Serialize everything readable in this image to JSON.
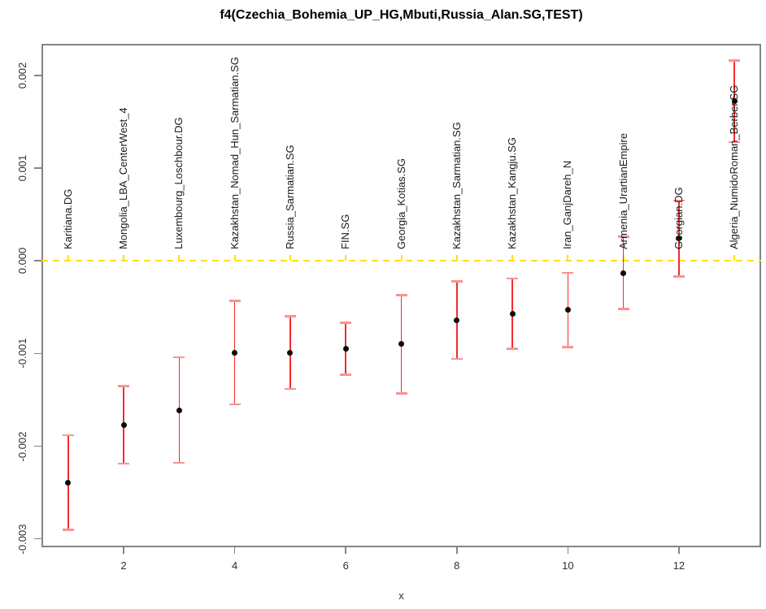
{
  "title": "f4(Czechia_Bohemia_UP_HG,Mbuti,Russia_Alan.SG,TEST)",
  "chart_data": {
    "type": "scatter",
    "title": "f4(Czechia_Bohemia_UP_HG,Mbuti,Russia_Alan.SG,TEST)",
    "xlabel": "x",
    "ylabel": "",
    "xlim": [
      0.52,
      13.48
    ],
    "ylim": [
      -0.00309,
      0.00234
    ],
    "x_ticks": [
      2,
      4,
      6,
      8,
      10,
      12
    ],
    "x_tick_labels": [
      "2",
      "4",
      "6",
      "8",
      "10",
      "12"
    ],
    "y_ticks": [
      0.002,
      0.001,
      0.0,
      -0.001,
      -0.002,
      -0.003
    ],
    "y_tick_labels": [
      "0.002",
      "0.001",
      "0.000",
      "-0.001",
      "-0.002",
      "-0.003"
    ],
    "grid": false,
    "zero_line": {
      "y": 0,
      "style": "dashed"
    },
    "colors": {
      "error_bar": "#f52a2a",
      "error_cap": "#fb9292",
      "point": "#0a0a0a",
      "zero_line": "#ffe000",
      "frame": "#848484",
      "tick_text": "#303030",
      "label_text": "#1a1a1a"
    },
    "points": [
      {
        "x": 1,
        "label": "Karitiana.DG",
        "value": -0.00239,
        "se": 0.00051
      },
      {
        "x": 2,
        "label": "Mongolia_LBA_CenterWest_4",
        "value": -0.00177,
        "se": 0.00042
      },
      {
        "x": 3,
        "label": "Luxembourg_Loschbour.DG",
        "value": -0.00161,
        "se": 0.00057
      },
      {
        "x": 4,
        "label": "Kazakhstan_Nomad_Hun_Sarmatian.SG",
        "value": -0.00099,
        "se": 0.00056
      },
      {
        "x": 5,
        "label": "Russia_Sarmatian.SG",
        "value": -0.00099,
        "se": 0.00039
      },
      {
        "x": 6,
        "label": "FIN.SG",
        "value": -0.00095,
        "se": 0.00028
      },
      {
        "x": 7,
        "label": "Georgia_Kotias.SG",
        "value": -0.0009,
        "se": 0.00053
      },
      {
        "x": 8,
        "label": "Kazakhstan_Sarmatian.SG",
        "value": -0.00064,
        "se": 0.00042
      },
      {
        "x": 9,
        "label": "Kazakhstan_Kangju.SG",
        "value": -0.00057,
        "se": 0.00038
      },
      {
        "x": 10,
        "label": "Iran_GanjDareh_N",
        "value": -0.00053,
        "se": 0.0004
      },
      {
        "x": 11,
        "label": "Armenia_UrartianEmpire",
        "value": -0.00013,
        "se": 0.00039
      },
      {
        "x": 12,
        "label": "Georgian.DG",
        "value": 0.00024,
        "se": 0.00041
      },
      {
        "x": 13,
        "label": "Algeria_NumidoRoman_Berber.SG",
        "value": 0.00172,
        "se": 0.00044
      }
    ]
  }
}
